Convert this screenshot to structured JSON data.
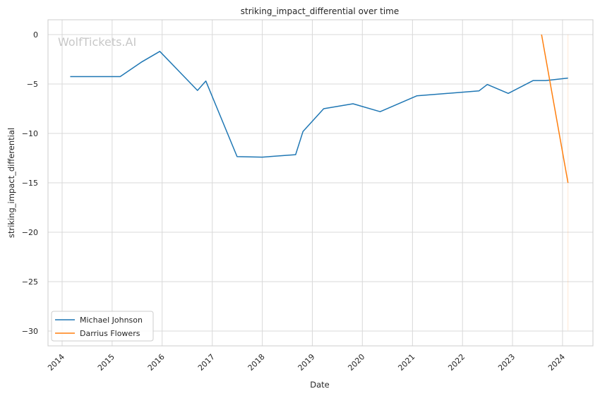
{
  "watermark": "WolfTickets.AI",
  "chart_data": {
    "type": "line",
    "title": "striking_impact_differential over time",
    "xlabel": "Date",
    "ylabel": "striking_impact_differential",
    "x_ticks": [
      "2014",
      "2015",
      "2016",
      "2017",
      "2018",
      "2019",
      "2020",
      "2021",
      "2022",
      "2023",
      "2024"
    ],
    "y_ticks": [
      0,
      -5,
      -10,
      -15,
      -20,
      -25,
      -30
    ],
    "y_tick_labels": [
      "0",
      "−5",
      "−10",
      "−15",
      "−20",
      "−25",
      "−30"
    ],
    "xlim": [
      "2013-09-20",
      "2024-08-10"
    ],
    "ylim": [
      -31.5,
      1.5
    ],
    "grid": true,
    "legend_position": "lower-left",
    "series": [
      {
        "name": "Michael Johnson",
        "color": "#1f77b4",
        "points": [
          [
            "2014-03-01",
            -4.25
          ],
          [
            "2015-03-01",
            -4.25
          ],
          [
            "2015-08-01",
            -2.8
          ],
          [
            "2015-12-15",
            -1.7
          ],
          [
            "2016-09-15",
            -5.65
          ],
          [
            "2016-11-15",
            -4.7
          ],
          [
            "2017-07-01",
            -12.35
          ],
          [
            "2018-01-01",
            -12.4
          ],
          [
            "2018-09-01",
            -12.15
          ],
          [
            "2018-10-25",
            -9.8
          ],
          [
            "2019-03-25",
            -7.5
          ],
          [
            "2019-10-25",
            -7.0
          ],
          [
            "2020-05-10",
            -7.8
          ],
          [
            "2021-02-01",
            -6.2
          ],
          [
            "2022-05-01",
            -5.7
          ],
          [
            "2022-07-01",
            -5.05
          ],
          [
            "2022-12-01",
            -5.95
          ],
          [
            "2023-06-01",
            -4.65
          ],
          [
            "2023-09-01",
            -4.65
          ],
          [
            "2024-02-10",
            -4.4
          ]
        ]
      },
      {
        "name": "Darrius Flowers",
        "color": "#ff7f0e",
        "points": [
          [
            "2023-08-01",
            0.0
          ],
          [
            "2024-02-10",
            -15.0
          ]
        ]
      }
    ]
  }
}
